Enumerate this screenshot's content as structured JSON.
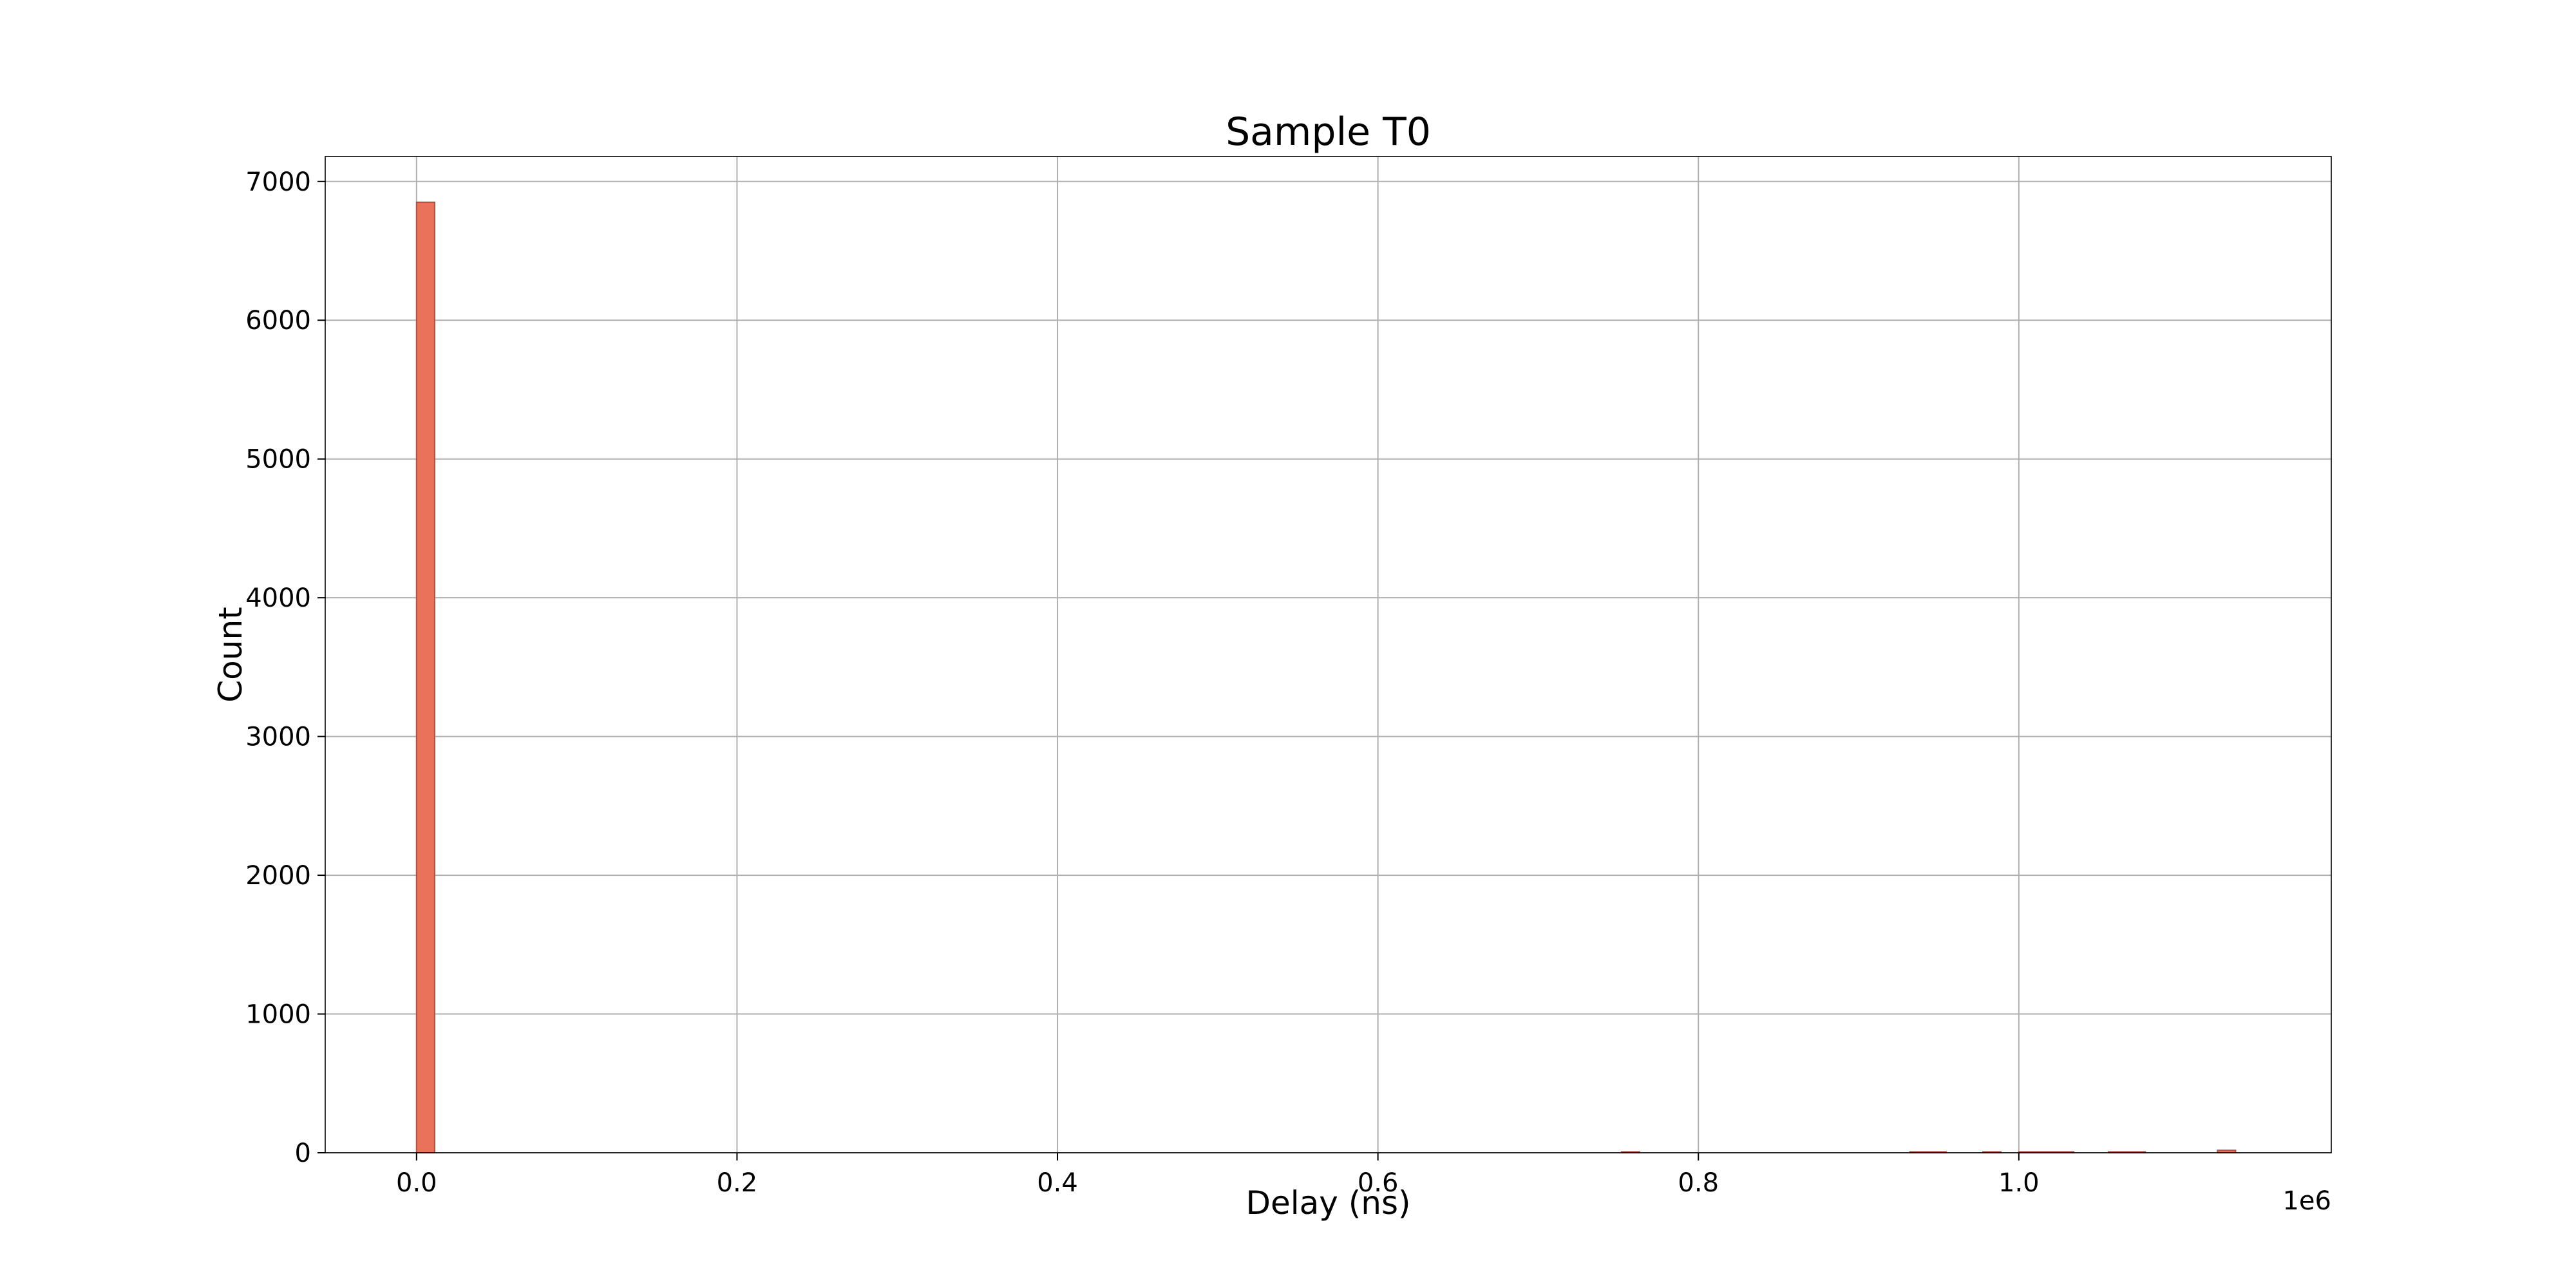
{
  "chart_data": {
    "type": "bar",
    "title": "Sample T0",
    "xlabel": "Delay (ns)",
    "ylabel": "Count",
    "x_offset_text": "1e6",
    "xlim": [
      -57000,
      1195000
    ],
    "ylim": [
      0,
      7180
    ],
    "x_ticks": [
      0,
      200000,
      400000,
      600000,
      800000,
      1000000
    ],
    "x_tick_labels": [
      "0.0",
      "0.2",
      "0.4",
      "0.6",
      "0.8",
      "1.0"
    ],
    "y_ticks": [
      0,
      1000,
      2000,
      3000,
      4000,
      5000,
      6000,
      7000
    ],
    "y_tick_labels": [
      "0",
      "1000",
      "2000",
      "3000",
      "4000",
      "5000",
      "6000",
      "7000"
    ],
    "grid": true,
    "bar_color": "#e8735a",
    "bar_edge_color": "#b5503d",
    "bins": [
      {
        "x0": 0,
        "x1": 11300,
        "count": 6850
      },
      {
        "x0": 752000,
        "x1": 763300,
        "count": 2
      },
      {
        "x0": 932000,
        "x1": 954600,
        "count": 2
      },
      {
        "x0": 977500,
        "x1": 988800,
        "count": 2
      },
      {
        "x0": 1000000,
        "x1": 1034300,
        "count": 3
      },
      {
        "x0": 1056000,
        "x1": 1079000,
        "count": 5
      },
      {
        "x0": 1124000,
        "x1": 1135300,
        "count": 18
      }
    ]
  }
}
